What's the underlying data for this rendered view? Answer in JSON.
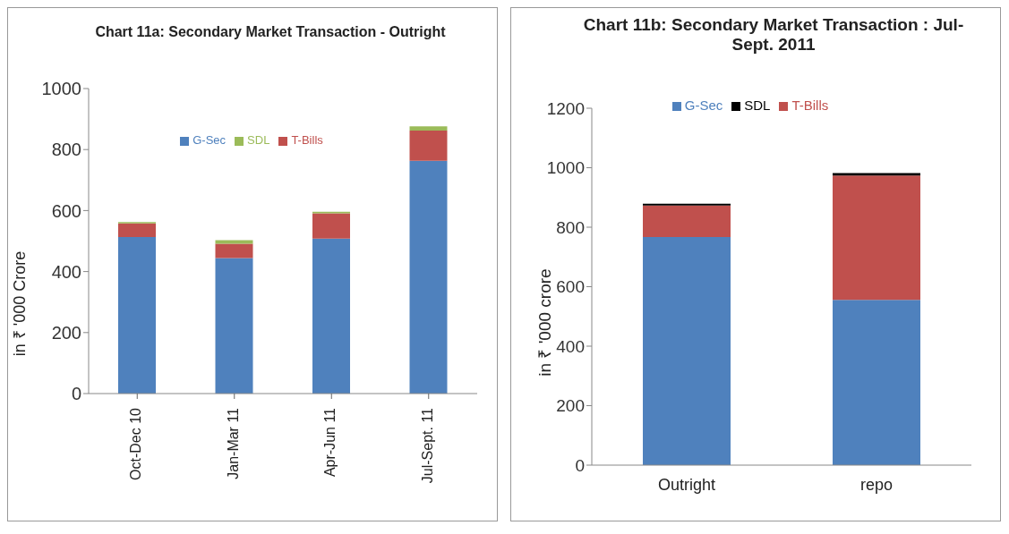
{
  "chart_data": [
    {
      "type": "bar",
      "title": "Chart 11a: Secondary Market Transaction - Outright",
      "ylabel": "in ₹ '000 Crore",
      "categories": [
        "Oct-Dec 10",
        "Jan-Mar 11",
        "Apr-Jun 11",
        "Jul-Sept. 11"
      ],
      "stacked": true,
      "ylim": [
        0,
        1000
      ],
      "yticks": [
        0,
        200,
        400,
        600,
        800,
        1000
      ],
      "legend": "top",
      "grid": false,
      "series": [
        {
          "name": "G-Sec",
          "color": "#4f81bd",
          "values": [
            513,
            444,
            508,
            763
          ]
        },
        {
          "name": "T-Bills",
          "color": "#c0504d",
          "values": [
            45,
            47,
            83,
            99
          ]
        },
        {
          "name": "SDL",
          "color": "#9bbb59",
          "values": [
            4,
            12,
            5,
            14
          ]
        }
      ]
    },
    {
      "type": "bar",
      "title": "Chart 11b: Secondary Market Transaction : Jul-Sept. 2011",
      "ylabel": "in ₹ '000 crore",
      "categories": [
        "Outright",
        "repo"
      ],
      "stacked": true,
      "ylim": [
        0,
        1200
      ],
      "yticks": [
        0,
        200,
        400,
        600,
        800,
        1000,
        1200
      ],
      "legend": "top",
      "grid": false,
      "series": [
        {
          "name": "G-Sec",
          "color": "#4f81bd",
          "values": [
            767,
            556
          ]
        },
        {
          "name": "T-Bills",
          "color": "#c0504d",
          "values": [
            106,
            418
          ]
        },
        {
          "name": "SDL",
          "color": "#000000",
          "values": [
            6,
            8
          ]
        }
      ]
    }
  ]
}
